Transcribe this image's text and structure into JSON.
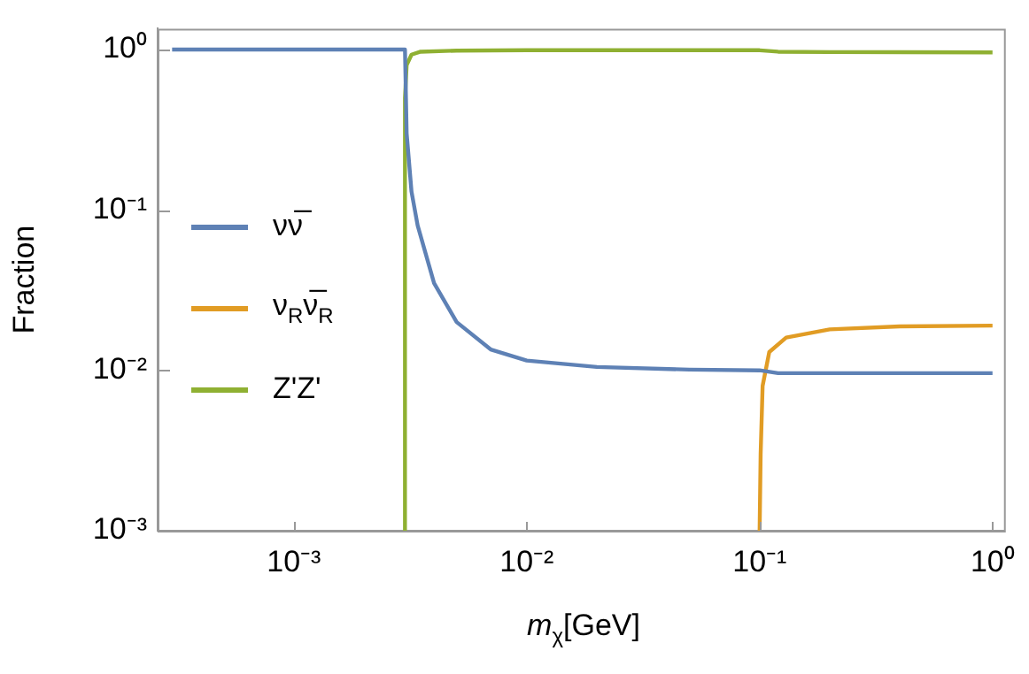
{
  "chart_data": {
    "type": "line",
    "xlabel": "m$_{χ}$[GeV]",
    "ylabel": "Fraction",
    "log": "xy",
    "grid": false,
    "legend": "left",
    "marker": "none",
    "line_style": "solid",
    "xlim": [
      0.00026,
      1.12
    ],
    "ylim": [
      0.001,
      1.35
    ],
    "xticks": [
      {
        "value": 0.001,
        "label": "10⁻³"
      },
      {
        "value": 0.01,
        "label": "10⁻²"
      },
      {
        "value": 0.1,
        "label": "10⁻¹"
      },
      {
        "value": 1,
        "label": "10⁰"
      }
    ],
    "yticks": [
      {
        "value": 0.001,
        "label": "10⁻³"
      },
      {
        "value": 0.01,
        "label": "10⁻²"
      },
      {
        "value": 0.1,
        "label": "10⁻¹"
      },
      {
        "value": 1,
        "label": "10⁰"
      }
    ],
    "series": [
      {
        "name": "νν̅",
        "color": "#5e81b5",
        "x": [
          0.0003,
          0.003,
          0.00305,
          0.0032,
          0.0034,
          0.004,
          0.005,
          0.007,
          0.01,
          0.02,
          0.05,
          0.1,
          0.12,
          1
        ],
        "values": [
          1,
          1,
          0.3,
          0.13,
          0.08,
          0.035,
          0.02,
          0.0135,
          0.0115,
          0.0105,
          0.0101,
          0.01,
          0.0096,
          0.0096
        ]
      },
      {
        "name": "ν$_{R}$ν̅$_{R}$",
        "color": "#e19c24",
        "x": [
          0.1,
          0.101,
          0.103,
          0.11,
          0.13,
          0.2,
          0.4,
          1
        ],
        "values": [
          0.001,
          0.003,
          0.008,
          0.013,
          0.016,
          0.018,
          0.0188,
          0.019
        ]
      },
      {
        "name": "Z'Z'",
        "color": "#8fb032",
        "x": [
          0.003,
          0.003,
          0.00305,
          0.0032,
          0.0035,
          0.005,
          0.01,
          0.05,
          0.1,
          0.12,
          0.2,
          1
        ],
        "values": [
          0.001,
          0.5,
          0.8,
          0.93,
          0.97,
          0.985,
          0.99,
          0.99,
          0.99,
          0.97,
          0.965,
          0.96
        ]
      }
    ]
  }
}
